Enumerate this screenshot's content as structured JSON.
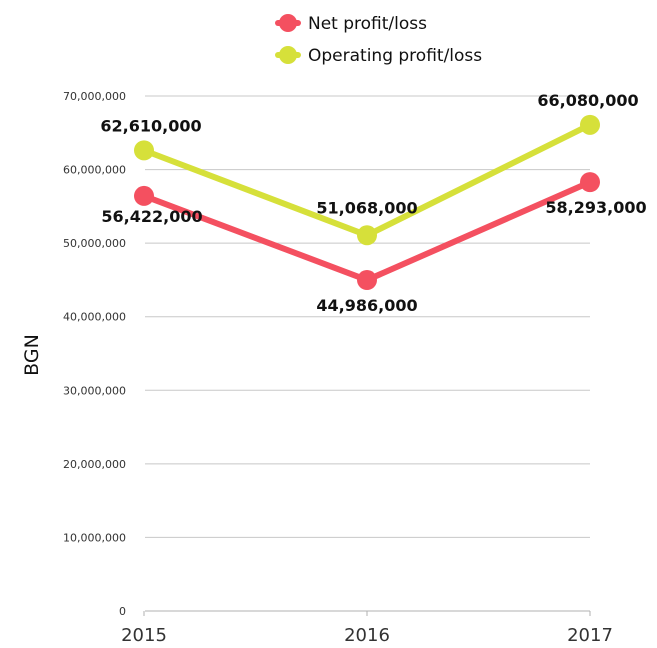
{
  "chart_data": {
    "type": "line",
    "categories": [
      "2015",
      "2016",
      "2017"
    ],
    "ylabel": "BGN",
    "xlabel": "",
    "ylim": [
      0,
      70000000
    ],
    "yticks": [
      0,
      10000000,
      20000000,
      30000000,
      40000000,
      50000000,
      60000000,
      70000000
    ],
    "ytick_labels": [
      "0",
      "10,000,000",
      "20,000,000",
      "30,000,000",
      "40,000,000",
      "50,000,000",
      "60,000,000",
      "70,000,000"
    ],
    "grid": true,
    "legend_position": "top",
    "series": [
      {
        "name": "Net profit/loss",
        "color": "#f45060",
        "values": [
          56422000,
          44986000,
          58293000
        ],
        "labels": [
          "56,422,000",
          "44,986,000",
          "58,293,000"
        ]
      },
      {
        "name": "Operating profit/loss",
        "color": "#d6e03a",
        "values": [
          62610000,
          51068000,
          66080000
        ],
        "labels": [
          "62,610,000",
          "51,068,000",
          "66,080,000"
        ]
      }
    ]
  }
}
